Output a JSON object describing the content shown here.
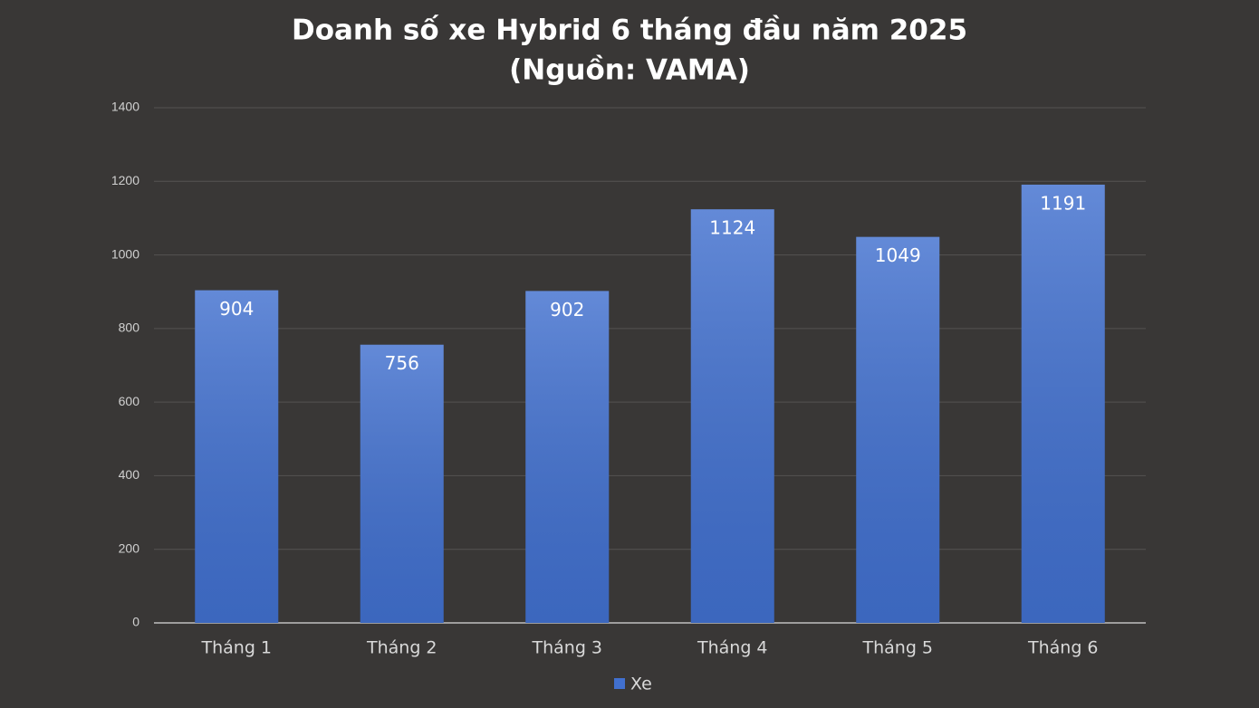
{
  "chart_data": {
    "type": "bar",
    "title": "Doanh số xe Hybrid 6 tháng đầu năm 2025",
    "subtitle": "(Nguồn: VAMA)",
    "categories": [
      "Tháng 1",
      "Tháng 2",
      "Tháng 3",
      "Tháng 4",
      "Tháng 5",
      "Tháng 6"
    ],
    "series": [
      {
        "name": "Xe",
        "color": "#4170cf",
        "values": [
          904,
          756,
          902,
          1124,
          1049,
          1191
        ]
      }
    ],
    "ylim": [
      0,
      1400
    ],
    "yticks": [
      0,
      200,
      400,
      600,
      800,
      1000,
      1200,
      1400
    ],
    "grid": true,
    "legend": "bottom"
  }
}
